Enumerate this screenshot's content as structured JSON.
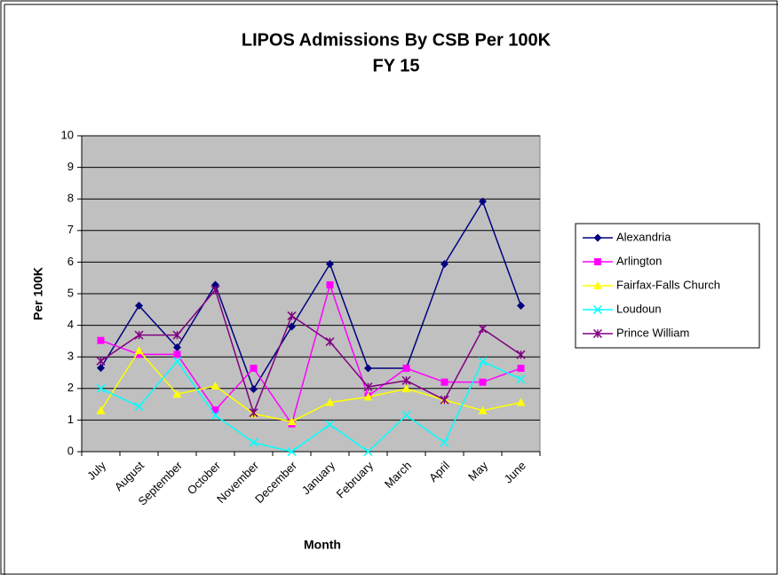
{
  "chart_data": {
    "type": "line",
    "title": "LIPOS Admissions By CSB Per 100K",
    "subtitle": "FY 15",
    "x_label": "Month",
    "y_label": "Per 100K",
    "categories": [
      "July",
      "August",
      "September",
      "October",
      "November",
      "December",
      "January",
      "February",
      "March",
      "April",
      "May",
      "June"
    ],
    "ylim": [
      0,
      10
    ],
    "yticks": [
      0,
      1,
      2,
      3,
      4,
      5,
      6,
      7,
      8,
      9,
      10
    ],
    "grid": true,
    "legend": "right",
    "series": [
      {
        "name": "Alexandria",
        "color": "#000080",
        "marker": "diamond",
        "values": [
          2.65,
          4.62,
          3.3,
          5.28,
          1.98,
          3.96,
          5.94,
          2.64,
          2.64,
          5.94,
          7.92,
          4.62
        ]
      },
      {
        "name": "Arlington",
        "color": "#ff00ff",
        "marker": "square",
        "values": [
          3.52,
          3.08,
          3.08,
          1.32,
          2.64,
          0.88,
          5.28,
          1.76,
          2.64,
          2.2,
          2.2,
          2.64
        ]
      },
      {
        "name": "Fairfax-Falls Church",
        "color": "#ffff00",
        "marker": "triangle",
        "values": [
          1.3,
          3.2,
          1.82,
          2.08,
          1.2,
          0.95,
          1.56,
          1.73,
          1.99,
          1.64,
          1.3,
          1.56
        ]
      },
      {
        "name": "Loudoun",
        "color": "#00ffff",
        "marker": "x",
        "values": [
          2.0,
          1.43,
          2.86,
          1.15,
          0.29,
          0,
          0.86,
          0,
          1.15,
          0.29,
          2.86,
          2.29
        ]
      },
      {
        "name": "Prince William",
        "color": "#800080",
        "marker": "star",
        "values": [
          2.87,
          3.69,
          3.69,
          5.12,
          1.23,
          4.3,
          3.48,
          2.05,
          2.25,
          1.64,
          3.89,
          3.07
        ]
      }
    ]
  }
}
